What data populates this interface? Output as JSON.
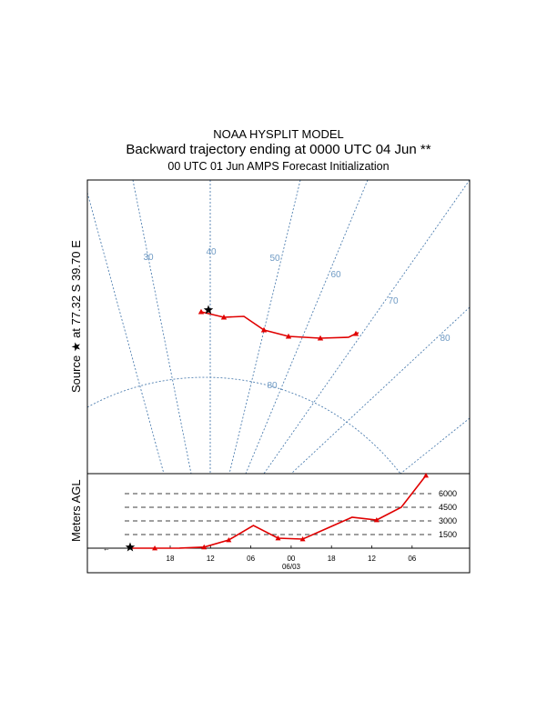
{
  "header": {
    "line1": "NOAA HYSPLIT MODEL",
    "line2": "Backward trajectory ending at 0000 UTC 04 Jun **",
    "line3": "00 UTC 01 Jun    AMPS  Forecast Initialization"
  },
  "source_label": "Source ★ at   77.32 S   39.70 E",
  "colors": {
    "trajectory": "#e00000",
    "grid": "#4f7fb0",
    "grid_label": "#6f9ac4"
  },
  "chart_data": [
    {
      "type": "map",
      "grid_labels": [
        "30",
        "40",
        "50",
        "60",
        "70",
        "80",
        "80"
      ],
      "source": {
        "lat": -77.32,
        "lon": 39.7
      },
      "trajectory_lon": [
        38.9,
        40.1,
        42.6,
        45.5,
        49.3,
        52.7,
        56.3,
        59.9,
        61.8
      ]
    },
    {
      "type": "line",
      "ylabel": "Meters AGL",
      "height_levels": [
        6000,
        4500,
        3000,
        1500
      ],
      "x_tick_labels": [
        "18",
        "12",
        "06",
        "00",
        "18",
        "12",
        "06"
      ],
      "date_label": "06/03",
      "hours_back": [
        0,
        -6,
        -12,
        -18,
        -24,
        -30,
        -36,
        -42,
        -48,
        -54,
        -60,
        -66,
        -72
      ],
      "height_m": [
        0,
        0,
        10,
        120,
        900,
        2500,
        1100,
        1000,
        2200,
        3400,
        3100,
        4500,
        8000
      ]
    }
  ]
}
